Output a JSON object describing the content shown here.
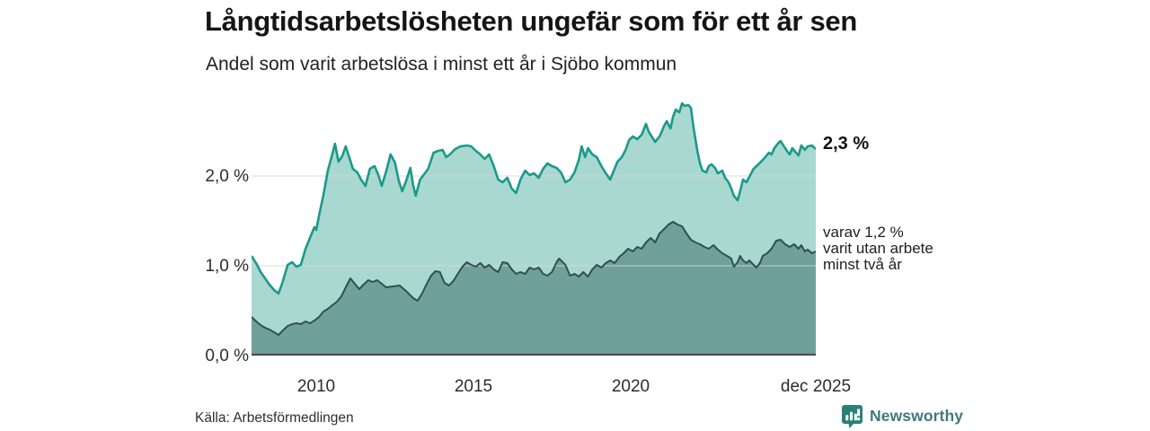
{
  "header": {
    "title": "Långtidsarbetslösheten ungefär som för ett år sen",
    "subtitle": "Andel som varit arbetslösa i minst ett år i Sjöbo kommun"
  },
  "annotations": {
    "total_label": "2,3 %",
    "two_year_lines": [
      "varav 1,2 %",
      "varit utan arbete",
      "minst två år"
    ]
  },
  "footer": {
    "source": "Källa: Arbetsförmedlingen",
    "brand": "Newsworthy"
  },
  "colors": {
    "series_total_line": "#1a9a8a",
    "series_total_fill": "#a9d8d0",
    "series_two_year_line": "#2f514d",
    "series_two_year_fill": "#6fa099",
    "gridline": "#d7d7d7",
    "baseline": "#4f4f4f",
    "brand_teal": "#2a8076"
  },
  "chart_data": {
    "type": "area",
    "title": "Långtidsarbetslösheten ungefär som för ett år sen",
    "subtitle": "Andel som varit arbetslösa i minst ett år i Sjöbo kommun",
    "unit": "%",
    "grid": true,
    "x_axis": {
      "range": [
        2007.94,
        2025.92
      ],
      "ticks": [
        "2010",
        "2015",
        "2020",
        "dec 2025"
      ],
      "tick_values": [
        2010.0,
        2015.0,
        2020.0,
        2025.92
      ]
    },
    "y_axis": {
      "range": [
        0,
        3.08
      ],
      "ticks": [
        "0,0 %",
        "1,0 %",
        "2,0 %"
      ],
      "tick_values": [
        0.0,
        1.0,
        2.0
      ]
    },
    "series": [
      {
        "name": "Andel som varit arbetslösa i minst ett år",
        "end_value": "2,3 %",
        "points": [
          [
            2007.94,
            1.11
          ],
          [
            2008.1,
            1.02
          ],
          [
            2008.23,
            0.93
          ],
          [
            2008.37,
            0.86
          ],
          [
            2008.51,
            0.79
          ],
          [
            2008.66,
            0.73
          ],
          [
            2008.8,
            0.69
          ],
          [
            2008.94,
            0.83
          ],
          [
            2009.09,
            1.01
          ],
          [
            2009.23,
            1.04
          ],
          [
            2009.37,
            0.99
          ],
          [
            2009.51,
            1.01
          ],
          [
            2009.66,
            1.19
          ],
          [
            2009.8,
            1.31
          ],
          [
            2009.94,
            1.43
          ],
          [
            2010.0,
            1.4
          ],
          [
            2010.09,
            1.56
          ],
          [
            2010.23,
            1.79
          ],
          [
            2010.37,
            2.06
          ],
          [
            2010.51,
            2.24
          ],
          [
            2010.6,
            2.36
          ],
          [
            2010.71,
            2.16
          ],
          [
            2010.83,
            2.22
          ],
          [
            2010.94,
            2.33
          ],
          [
            2011.06,
            2.2
          ],
          [
            2011.17,
            2.08
          ],
          [
            2011.31,
            2.04
          ],
          [
            2011.43,
            1.96
          ],
          [
            2011.57,
            1.89
          ],
          [
            2011.71,
            2.08
          ],
          [
            2011.86,
            2.11
          ],
          [
            2011.97,
            2.02
          ],
          [
            2012.09,
            1.89
          ],
          [
            2012.23,
            2.05
          ],
          [
            2012.37,
            2.24
          ],
          [
            2012.51,
            2.15
          ],
          [
            2012.63,
            1.95
          ],
          [
            2012.74,
            1.83
          ],
          [
            2012.87,
            1.95
          ],
          [
            2013.0,
            2.09
          ],
          [
            2013.09,
            1.9
          ],
          [
            2013.17,
            1.78
          ],
          [
            2013.31,
            1.96
          ],
          [
            2013.44,
            2.02
          ],
          [
            2013.57,
            2.08
          ],
          [
            2013.74,
            2.26
          ],
          [
            2013.89,
            2.28
          ],
          [
            2014.03,
            2.29
          ],
          [
            2014.14,
            2.21
          ],
          [
            2014.26,
            2.24
          ],
          [
            2014.43,
            2.3
          ],
          [
            2014.6,
            2.33
          ],
          [
            2014.8,
            2.34
          ],
          [
            2014.94,
            2.33
          ],
          [
            2015.09,
            2.28
          ],
          [
            2015.23,
            2.24
          ],
          [
            2015.37,
            2.19
          ],
          [
            2015.51,
            2.24
          ],
          [
            2015.66,
            2.11
          ],
          [
            2015.8,
            1.96
          ],
          [
            2015.94,
            1.93
          ],
          [
            2016.09,
            1.98
          ],
          [
            2016.23,
            1.86
          ],
          [
            2016.37,
            1.81
          ],
          [
            2016.51,
            1.96
          ],
          [
            2016.66,
            2.06
          ],
          [
            2016.8,
            2.01
          ],
          [
            2016.94,
            2.03
          ],
          [
            2017.09,
            1.98
          ],
          [
            2017.23,
            2.08
          ],
          [
            2017.37,
            2.14
          ],
          [
            2017.51,
            2.11
          ],
          [
            2017.66,
            2.09
          ],
          [
            2017.8,
            2.04
          ],
          [
            2017.94,
            1.93
          ],
          [
            2018.09,
            1.96
          ],
          [
            2018.23,
            2.04
          ],
          [
            2018.37,
            2.18
          ],
          [
            2018.46,
            2.33
          ],
          [
            2018.57,
            2.21
          ],
          [
            2018.66,
            2.31
          ],
          [
            2018.8,
            2.24
          ],
          [
            2018.94,
            2.21
          ],
          [
            2019.09,
            2.11
          ],
          [
            2019.23,
            2.03
          ],
          [
            2019.37,
            1.96
          ],
          [
            2019.46,
            2.04
          ],
          [
            2019.6,
            2.16
          ],
          [
            2019.74,
            2.21
          ],
          [
            2019.86,
            2.29
          ],
          [
            2019.97,
            2.4
          ],
          [
            2020.09,
            2.44
          ],
          [
            2020.23,
            2.41
          ],
          [
            2020.37,
            2.46
          ],
          [
            2020.51,
            2.58
          ],
          [
            2020.6,
            2.49
          ],
          [
            2020.71,
            2.43
          ],
          [
            2020.8,
            2.38
          ],
          [
            2020.94,
            2.44
          ],
          [
            2021.09,
            2.56
          ],
          [
            2021.17,
            2.61
          ],
          [
            2021.29,
            2.53
          ],
          [
            2021.37,
            2.66
          ],
          [
            2021.46,
            2.74
          ],
          [
            2021.57,
            2.71
          ],
          [
            2021.66,
            2.81
          ],
          [
            2021.74,
            2.78
          ],
          [
            2021.86,
            2.79
          ],
          [
            2021.94,
            2.76
          ],
          [
            2022.03,
            2.53
          ],
          [
            2022.14,
            2.29
          ],
          [
            2022.23,
            2.14
          ],
          [
            2022.31,
            2.06
          ],
          [
            2022.43,
            2.04
          ],
          [
            2022.51,
            2.11
          ],
          [
            2022.6,
            2.13
          ],
          [
            2022.71,
            2.09
          ],
          [
            2022.8,
            2.03
          ],
          [
            2022.94,
            2.06
          ],
          [
            2023.03,
            1.98
          ],
          [
            2023.14,
            1.93
          ],
          [
            2023.23,
            1.86
          ],
          [
            2023.31,
            1.78
          ],
          [
            2023.43,
            1.73
          ],
          [
            2023.51,
            1.83
          ],
          [
            2023.6,
            1.96
          ],
          [
            2023.71,
            1.93
          ],
          [
            2023.8,
            1.99
          ],
          [
            2023.94,
            2.08
          ],
          [
            2024.09,
            2.13
          ],
          [
            2024.23,
            2.18
          ],
          [
            2024.31,
            2.21
          ],
          [
            2024.43,
            2.26
          ],
          [
            2024.51,
            2.24
          ],
          [
            2024.6,
            2.31
          ],
          [
            2024.71,
            2.36
          ],
          [
            2024.8,
            2.39
          ],
          [
            2024.89,
            2.34
          ],
          [
            2025.0,
            2.28
          ],
          [
            2025.09,
            2.24
          ],
          [
            2025.17,
            2.31
          ],
          [
            2025.29,
            2.26
          ],
          [
            2025.37,
            2.23
          ],
          [
            2025.46,
            2.34
          ],
          [
            2025.57,
            2.29
          ],
          [
            2025.66,
            2.33
          ],
          [
            2025.8,
            2.34
          ],
          [
            2025.92,
            2.3
          ]
        ]
      },
      {
        "name": "varav utan arbete minst två år",
        "end_value": "1,2 %",
        "points": [
          [
            2007.94,
            0.43
          ],
          [
            2008.09,
            0.38
          ],
          [
            2008.23,
            0.34
          ],
          [
            2008.37,
            0.31
          ],
          [
            2008.51,
            0.29
          ],
          [
            2008.66,
            0.26
          ],
          [
            2008.8,
            0.23
          ],
          [
            2008.94,
            0.28
          ],
          [
            2009.09,
            0.33
          ],
          [
            2009.23,
            0.35
          ],
          [
            2009.37,
            0.36
          ],
          [
            2009.51,
            0.35
          ],
          [
            2009.66,
            0.38
          ],
          [
            2009.8,
            0.36
          ],
          [
            2009.94,
            0.39
          ],
          [
            2010.09,
            0.43
          ],
          [
            2010.23,
            0.49
          ],
          [
            2010.37,
            0.52
          ],
          [
            2010.51,
            0.56
          ],
          [
            2010.66,
            0.6
          ],
          [
            2010.8,
            0.66
          ],
          [
            2010.94,
            0.76
          ],
          [
            2011.09,
            0.86
          ],
          [
            2011.23,
            0.8
          ],
          [
            2011.37,
            0.74
          ],
          [
            2011.51,
            0.79
          ],
          [
            2011.66,
            0.84
          ],
          [
            2011.8,
            0.82
          ],
          [
            2011.94,
            0.84
          ],
          [
            2012.09,
            0.8
          ],
          [
            2012.23,
            0.76
          ],
          [
            2012.43,
            0.77
          ],
          [
            2012.66,
            0.78
          ],
          [
            2012.86,
            0.72
          ],
          [
            2013.09,
            0.64
          ],
          [
            2013.23,
            0.61
          ],
          [
            2013.37,
            0.69
          ],
          [
            2013.51,
            0.79
          ],
          [
            2013.66,
            0.89
          ],
          [
            2013.8,
            0.94
          ],
          [
            2013.94,
            0.93
          ],
          [
            2014.09,
            0.81
          ],
          [
            2014.23,
            0.78
          ],
          [
            2014.37,
            0.83
          ],
          [
            2014.51,
            0.91
          ],
          [
            2014.66,
            0.99
          ],
          [
            2014.8,
            1.04
          ],
          [
            2014.94,
            1.01
          ],
          [
            2015.09,
            0.99
          ],
          [
            2015.23,
            1.03
          ],
          [
            2015.37,
            0.98
          ],
          [
            2015.51,
            1.01
          ],
          [
            2015.66,
            0.96
          ],
          [
            2015.8,
            0.93
          ],
          [
            2015.94,
            1.04
          ],
          [
            2016.09,
            1.03
          ],
          [
            2016.23,
            0.96
          ],
          [
            2016.37,
            0.91
          ],
          [
            2016.51,
            0.93
          ],
          [
            2016.66,
            0.91
          ],
          [
            2016.8,
            0.98
          ],
          [
            2016.94,
            0.96
          ],
          [
            2017.09,
            0.98
          ],
          [
            2017.23,
            0.91
          ],
          [
            2017.37,
            0.89
          ],
          [
            2017.51,
            0.93
          ],
          [
            2017.66,
            1.04
          ],
          [
            2017.74,
            1.08
          ],
          [
            2017.86,
            1.04
          ],
          [
            2017.94,
            1.01
          ],
          [
            2018.09,
            0.89
          ],
          [
            2018.23,
            0.91
          ],
          [
            2018.37,
            0.88
          ],
          [
            2018.51,
            0.93
          ],
          [
            2018.66,
            0.88
          ],
          [
            2018.8,
            0.96
          ],
          [
            2018.94,
            1.01
          ],
          [
            2019.09,
            0.98
          ],
          [
            2019.23,
            1.03
          ],
          [
            2019.37,
            1.06
          ],
          [
            2019.51,
            1.03
          ],
          [
            2019.66,
            1.1
          ],
          [
            2019.8,
            1.14
          ],
          [
            2019.94,
            1.19
          ],
          [
            2020.09,
            1.16
          ],
          [
            2020.23,
            1.21
          ],
          [
            2020.37,
            1.19
          ],
          [
            2020.51,
            1.26
          ],
          [
            2020.66,
            1.31
          ],
          [
            2020.8,
            1.26
          ],
          [
            2020.94,
            1.36
          ],
          [
            2021.09,
            1.41
          ],
          [
            2021.23,
            1.46
          ],
          [
            2021.37,
            1.49
          ],
          [
            2021.51,
            1.46
          ],
          [
            2021.66,
            1.44
          ],
          [
            2021.8,
            1.36
          ],
          [
            2021.94,
            1.29
          ],
          [
            2022.09,
            1.26
          ],
          [
            2022.23,
            1.24
          ],
          [
            2022.37,
            1.21
          ],
          [
            2022.51,
            1.19
          ],
          [
            2022.66,
            1.23
          ],
          [
            2022.8,
            1.18
          ],
          [
            2022.94,
            1.14
          ],
          [
            2023.09,
            1.11
          ],
          [
            2023.23,
            1.08
          ],
          [
            2023.31,
            0.99
          ],
          [
            2023.43,
            1.04
          ],
          [
            2023.51,
            1.11
          ],
          [
            2023.6,
            1.06
          ],
          [
            2023.71,
            1.03
          ],
          [
            2023.8,
            1.06
          ],
          [
            2023.94,
            1.01
          ],
          [
            2024.03,
            0.98
          ],
          [
            2024.14,
            1.03
          ],
          [
            2024.23,
            1.11
          ],
          [
            2024.37,
            1.14
          ],
          [
            2024.51,
            1.19
          ],
          [
            2024.66,
            1.28
          ],
          [
            2024.8,
            1.29
          ],
          [
            2024.94,
            1.24
          ],
          [
            2025.09,
            1.21
          ],
          [
            2025.23,
            1.24
          ],
          [
            2025.37,
            1.19
          ],
          [
            2025.46,
            1.23
          ],
          [
            2025.57,
            1.16
          ],
          [
            2025.66,
            1.18
          ],
          [
            2025.8,
            1.14
          ],
          [
            2025.92,
            1.16
          ]
        ]
      }
    ],
    "annotations": [
      "2,3 %",
      "varav 1,2 % varit utan arbete minst två år"
    ],
    "source": "Källa: Arbetsförmedlingen"
  }
}
